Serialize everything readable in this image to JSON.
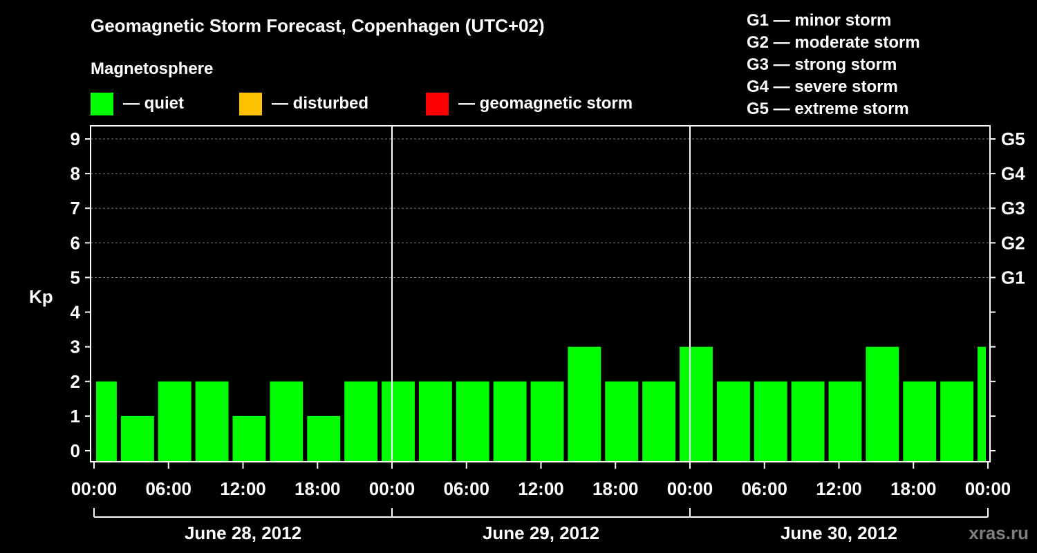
{
  "title": "Geomagnetic Storm Forecast, Copenhagen (UTC+02)",
  "subtitle": "Magnetosphere",
  "legend": [
    {
      "label": "— quiet",
      "color": "#00ff00"
    },
    {
      "label": "— disturbed",
      "color": "#ffc000"
    },
    {
      "label": "— geomagnetic storm",
      "color": "#ff0000"
    }
  ],
  "g_scale": [
    "G1 — minor storm",
    "G2 — moderate storm",
    "G3 — strong storm",
    "G4 — severe storm",
    "G5 — extreme storm"
  ],
  "watermark": "xras.ru",
  "chart_data": {
    "type": "bar",
    "ylabel": "Kp",
    "ylim": [
      0,
      9
    ],
    "yticks": [
      0,
      1,
      2,
      3,
      4,
      5,
      6,
      7,
      8,
      9
    ],
    "right_ticks": [
      {
        "kp": 5,
        "label": "G1"
      },
      {
        "kp": 6,
        "label": "G2"
      },
      {
        "kp": 7,
        "label": "G3"
      },
      {
        "kp": 8,
        "label": "G4"
      },
      {
        "kp": 9,
        "label": "G5"
      }
    ],
    "grid": "dashed horizontal",
    "xticks": [
      "00:00",
      "06:00",
      "12:00",
      "18:00",
      "00:00",
      "06:00",
      "12:00",
      "18:00",
      "00:00",
      "06:00",
      "12:00",
      "18:00",
      "00:00"
    ],
    "days": [
      "June 28, 2012",
      "June 29, 2012",
      "June 30, 2012"
    ],
    "quiet_color": "#00ff00",
    "bars": [
      {
        "start": "2012-06-28 00:00",
        "end": "2012-06-28 02:00",
        "kp": 2
      },
      {
        "start": "2012-06-28 02:00",
        "end": "2012-06-28 05:00",
        "kp": 1
      },
      {
        "start": "2012-06-28 05:00",
        "end": "2012-06-28 08:00",
        "kp": 2
      },
      {
        "start": "2012-06-28 08:00",
        "end": "2012-06-28 11:00",
        "kp": 2
      },
      {
        "start": "2012-06-28 11:00",
        "end": "2012-06-28 14:00",
        "kp": 1
      },
      {
        "start": "2012-06-28 14:00",
        "end": "2012-06-28 17:00",
        "kp": 2
      },
      {
        "start": "2012-06-28 17:00",
        "end": "2012-06-28 20:00",
        "kp": 1
      },
      {
        "start": "2012-06-28 20:00",
        "end": "2012-06-28 23:00",
        "kp": 2
      },
      {
        "start": "2012-06-28 23:00",
        "end": "2012-06-29 02:00",
        "kp": 2
      },
      {
        "start": "2012-06-29 02:00",
        "end": "2012-06-29 05:00",
        "kp": 2
      },
      {
        "start": "2012-06-29 05:00",
        "end": "2012-06-29 08:00",
        "kp": 2
      },
      {
        "start": "2012-06-29 08:00",
        "end": "2012-06-29 11:00",
        "kp": 2
      },
      {
        "start": "2012-06-29 11:00",
        "end": "2012-06-29 14:00",
        "kp": 2
      },
      {
        "start": "2012-06-29 14:00",
        "end": "2012-06-29 17:00",
        "kp": 3
      },
      {
        "start": "2012-06-29 17:00",
        "end": "2012-06-29 20:00",
        "kp": 2
      },
      {
        "start": "2012-06-29 20:00",
        "end": "2012-06-29 23:00",
        "kp": 2
      },
      {
        "start": "2012-06-29 23:00",
        "end": "2012-06-30 02:00",
        "kp": 3
      },
      {
        "start": "2012-06-30 02:00",
        "end": "2012-06-30 05:00",
        "kp": 2
      },
      {
        "start": "2012-06-30 05:00",
        "end": "2012-06-30 08:00",
        "kp": 2
      },
      {
        "start": "2012-06-30 08:00",
        "end": "2012-06-30 11:00",
        "kp": 2
      },
      {
        "start": "2012-06-30 11:00",
        "end": "2012-06-30 14:00",
        "kp": 2
      },
      {
        "start": "2012-06-30 14:00",
        "end": "2012-06-30 17:00",
        "kp": 3
      },
      {
        "start": "2012-06-30 17:00",
        "end": "2012-06-30 20:00",
        "kp": 2
      },
      {
        "start": "2012-06-30 20:00",
        "end": "2012-06-30 23:00",
        "kp": 2
      },
      {
        "start": "2012-06-30 23:00",
        "end": "2012-07-01 00:00",
        "kp": 3
      }
    ]
  }
}
